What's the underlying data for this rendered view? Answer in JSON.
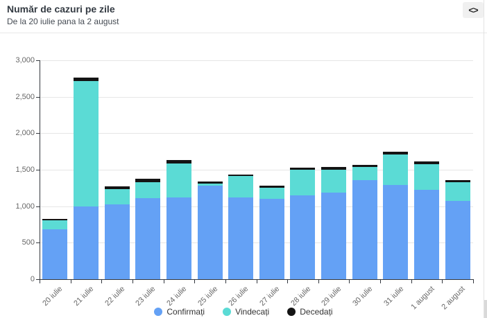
{
  "header": {
    "title": "Număr de cazuri pe zile",
    "subtitle": "De la 20 iulie pana la 2 august",
    "embed_icon": "<>"
  },
  "chart_data": {
    "type": "bar",
    "stacked": true,
    "title": "Număr de cazuri pe zile",
    "categories": [
      "20 iulie",
      "21 iulie",
      "22 iulie",
      "23 iulie",
      "24 iulie",
      "25 iulie",
      "26 iulie",
      "27 iulie",
      "28 iulie",
      "29 iulie",
      "30 iulie",
      "31 iulie",
      "1 august",
      "2 august"
    ],
    "series": [
      {
        "name": "Confirmați",
        "color": "#64a1f5",
        "values": [
          681,
          994,
          1030,
          1112,
          1119,
          1284,
          1120,
          1104,
          1151,
          1182,
          1356,
          1295,
          1225,
          1075
        ]
      },
      {
        "name": "Vindecați",
        "color": "#5bdbd5",
        "values": [
          125,
          1725,
          200,
          220,
          470,
          30,
          290,
          150,
          345,
          315,
          180,
          410,
          350,
          255
        ]
      },
      {
        "name": "Decedați",
        "color": "#141414",
        "values": [
          20,
          45,
          45,
          40,
          40,
          25,
          22,
          25,
          30,
          38,
          32,
          38,
          38,
          30
        ]
      }
    ],
    "xlabel": "",
    "ylabel": "",
    "ylim": [
      0,
      3000
    ],
    "ytick_step": 500,
    "ytick_labels": [
      "0",
      "500",
      "1,000",
      "1,500",
      "2,000",
      "2,500",
      "3,000"
    ],
    "grid": true,
    "legend_position": "bottom-center",
    "colors": {
      "grid": "#e6e6e6",
      "axis": "#33373d",
      "tick_label": "#666666"
    }
  }
}
